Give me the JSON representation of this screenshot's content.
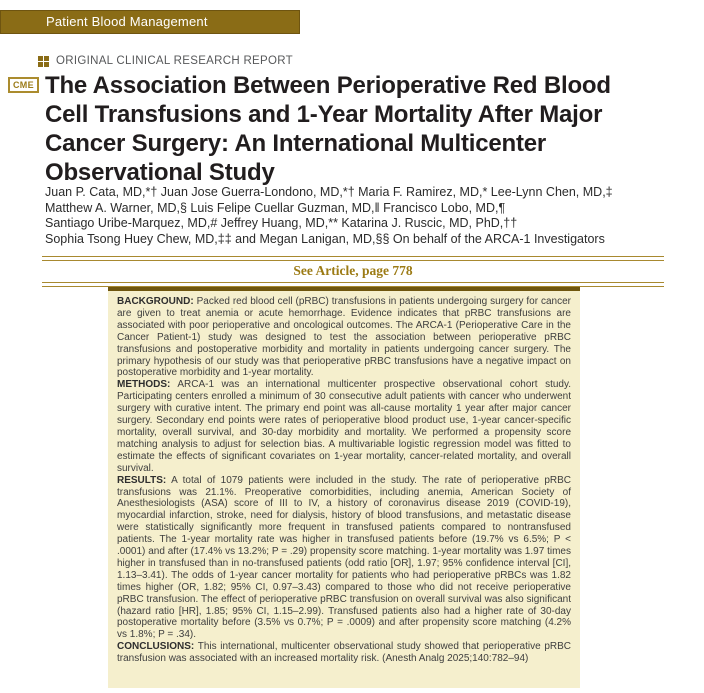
{
  "banner": {
    "label": "Patient Blood Management"
  },
  "kicker": {
    "icon": "grid-icon",
    "label": "ORIGINAL CLINICAL RESEARCH REPORT"
  },
  "cme_badge": "CME",
  "title_lines": [
    "The Association Between Perioperative Red Blood",
    "Cell Transfusions and 1-Year Mortality After Major",
    "Cancer Surgery: An International Multicenter",
    "Observational Study"
  ],
  "author_lines": [
    "Juan P. Cata, MD,*† Juan Jose Guerra-Londono, MD,*† Maria F. Ramirez, MD,* Lee-Lynn Chen, MD,‡",
    "Matthew A. Warner, MD,§ Luis Felipe Cuellar Guzman, MD,‖ Francisco Lobo, MD,¶",
    "Santiago Uribe-Marquez, MD,# Jeffrey Huang, MD,** Katarina J. Ruscic, MD, PhD,††",
    "Sophia Tsong Huey Chew, MD,‡‡ and Megan Lanigan, MD,§§ On behalf of the ARCA-1 Investigators"
  ],
  "see_article": "See Article, page 778",
  "abstract": {
    "sections": [
      {
        "label": "BACKGROUND:",
        "text": "Packed red blood cell (pRBC) transfusions in patients undergoing surgery for cancer are given to treat anemia or acute hemorrhage. Evidence indicates that pRBC transfusions are associated with poor perioperative and oncological outcomes. The ARCA-1 (Perioperative Care in the Cancer Patient-1) study was designed to test the association between perioperative pRBC transfusions and postoperative morbidity and mortality in patients undergoing cancer surgery. The primary hypothesis of our study was that perioperative pRBC transfusions have a negative impact on postoperative morbidity and 1-year mortality."
      },
      {
        "label": "METHODS:",
        "text": "ARCA-1 was an international multicenter prospective observational cohort study. Participating centers enrolled a minimum of 30 consecutive adult patients with cancer who underwent surgery with curative intent. The primary end point was all-cause mortality 1 year after major cancer surgery. Secondary end points were rates of perioperative blood product use, 1-year cancer-specific mortality, overall survival, and 30-day morbidity and mortality. We performed a propensity score matching analysis to adjust for selection bias. A multivariable logistic regression model was fitted to estimate the effects of significant covariates on 1-year mortality, cancer-related mortality, and overall survival."
      },
      {
        "label": "RESULTS:",
        "text": "A total of 1079 patients were included in the study. The rate of perioperative pRBC transfusions was 21.1%. Preoperative comorbidities, including anemia, American Society of Anesthesiologists (ASA) score of III to IV, a history of coronavirus disease 2019 (COVID-19), myocardial infarction, stroke, need for dialysis, history of blood transfusions, and metastatic disease were statistically significantly more frequent in transfused patients compared to nontransfused patients. The 1-year mortality rate was higher in transfused patients before (19.7% vs 6.5%; P < .0001) and after (17.4% vs 13.2%; P = .29) propensity score matching. 1-year mortality was 1.97 times higher in transfused than in no-transfused patients (odd ratio [OR], 1.97; 95% confidence interval [CI], 1.13–3.41). The odds of 1-year cancer mortality for patients who had perioperative pRBCs was 1.82 times higher (OR, 1.82; 95% CI, 0.97–3.43) compared to those who did not receive perioperative pRBC transfusion. The effect of perioperative pRBC transfusion on overall survival was also significant (hazard ratio [HR], 1.85; 95% CI, 1.15–2.99). Transfused patients also had a higher rate of 30-day postoperative mortality before (3.5% vs 0.7%; P = .0009) and after propensity score matching (4.2% vs 1.8%; P = .34)."
      },
      {
        "label": "CONCLUSIONS:",
        "text": "This international, multicenter observational study showed that perioperative pRBC transfusion was associated with an increased mortality risk. (Anesth Analg 2025;140:782–94)"
      }
    ]
  },
  "colors": {
    "banner_gold": "#8a6c16",
    "rule_gold": "#a8892f",
    "see_article_gold": "#9c7b15",
    "abstract_background": "#f5efcd",
    "abstract_top_border": "#6f560e",
    "title_text": "#211d1e",
    "kicker_gray": "#57585a"
  }
}
